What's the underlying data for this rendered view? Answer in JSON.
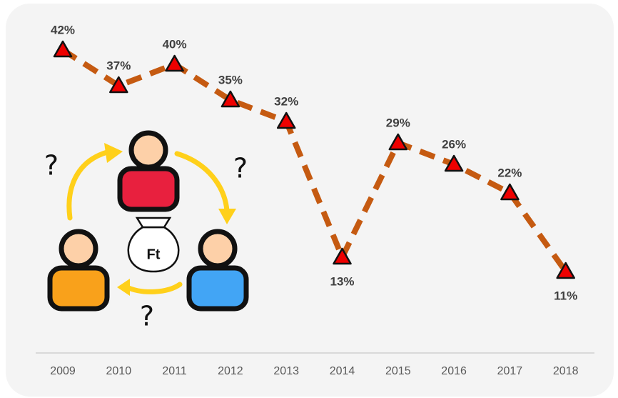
{
  "chart_data": {
    "type": "line",
    "categories": [
      "2009",
      "2010",
      "2011",
      "2012",
      "2013",
      "2014",
      "2015",
      "2016",
      "2017",
      "2018"
    ],
    "values": [
      42,
      37,
      40,
      35,
      32,
      13,
      29,
      26,
      22,
      11
    ],
    "value_labels": [
      "42%",
      "37%",
      "40%",
      "35%",
      "32%",
      "13%",
      "29%",
      "26%",
      "22%",
      "11%"
    ],
    "color": "#c55a11",
    "marker_color": "#ee0000",
    "ylim": [
      0,
      45
    ],
    "annotations": [
      "?",
      "?",
      "?",
      "Ft"
    ]
  }
}
